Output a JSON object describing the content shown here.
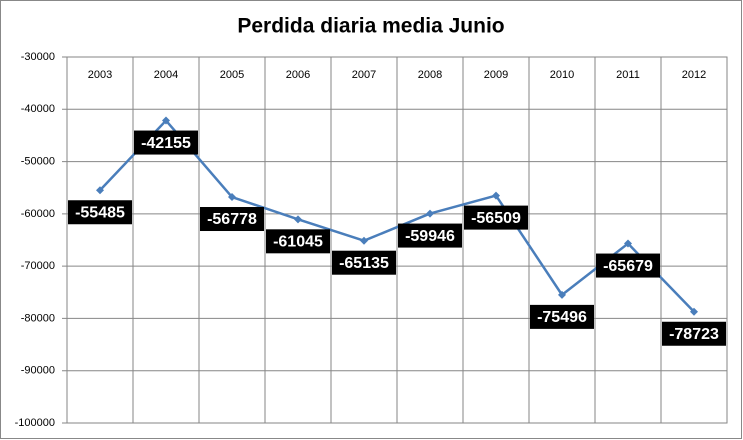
{
  "chart_data": {
    "type": "line",
    "title": "Perdida diaria media Junio",
    "categories": [
      "2003",
      "2004",
      "2005",
      "2006",
      "2007",
      "2008",
      "2009",
      "2010",
      "2011",
      "2012"
    ],
    "values": [
      -55485,
      -42155,
      -56778,
      -61045,
      -65135,
      -59946,
      -56509,
      -75496,
      -65679,
      -78723
    ],
    "color": "#4a7ebb",
    "ylim": [
      -100000,
      -30000
    ],
    "yticks": [
      -100000,
      -90000,
      -80000,
      -70000,
      -60000,
      -50000,
      -40000,
      -30000
    ],
    "grid": true
  }
}
